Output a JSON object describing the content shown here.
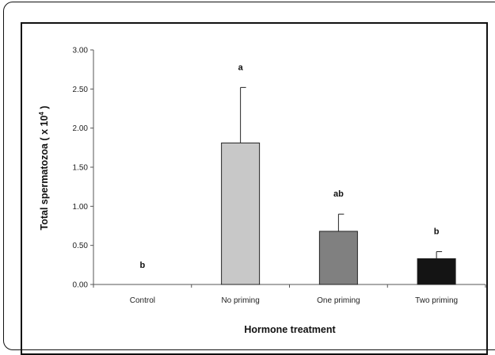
{
  "chart_data": {
    "type": "bar",
    "categories": [
      "Control",
      "No priming",
      "One priming",
      "Two priming"
    ],
    "values": [
      0.0,
      1.81,
      0.68,
      0.33
    ],
    "errors": [
      0.0,
      0.71,
      0.22,
      0.09
    ],
    "annotations": [
      "b",
      "a",
      "ab",
      "b"
    ],
    "colors": [
      "#ffffff",
      "#c8c8c8",
      "#808080",
      "#141414"
    ],
    "xlabel": "Hormone treatment",
    "ylabel_text": "Total spermatozoa ( x 10",
    "ylabel_exp": "4",
    "ylabel_close": " )",
    "ylim": [
      0,
      3.0
    ],
    "yticks": [
      "0.00",
      "0.50",
      "1.00",
      "1.50",
      "2.00",
      "2.50",
      "3.00"
    ],
    "ytick_values": [
      0,
      0.5,
      1.0,
      1.5,
      2.0,
      2.5,
      3.0
    ],
    "grid": false
  }
}
